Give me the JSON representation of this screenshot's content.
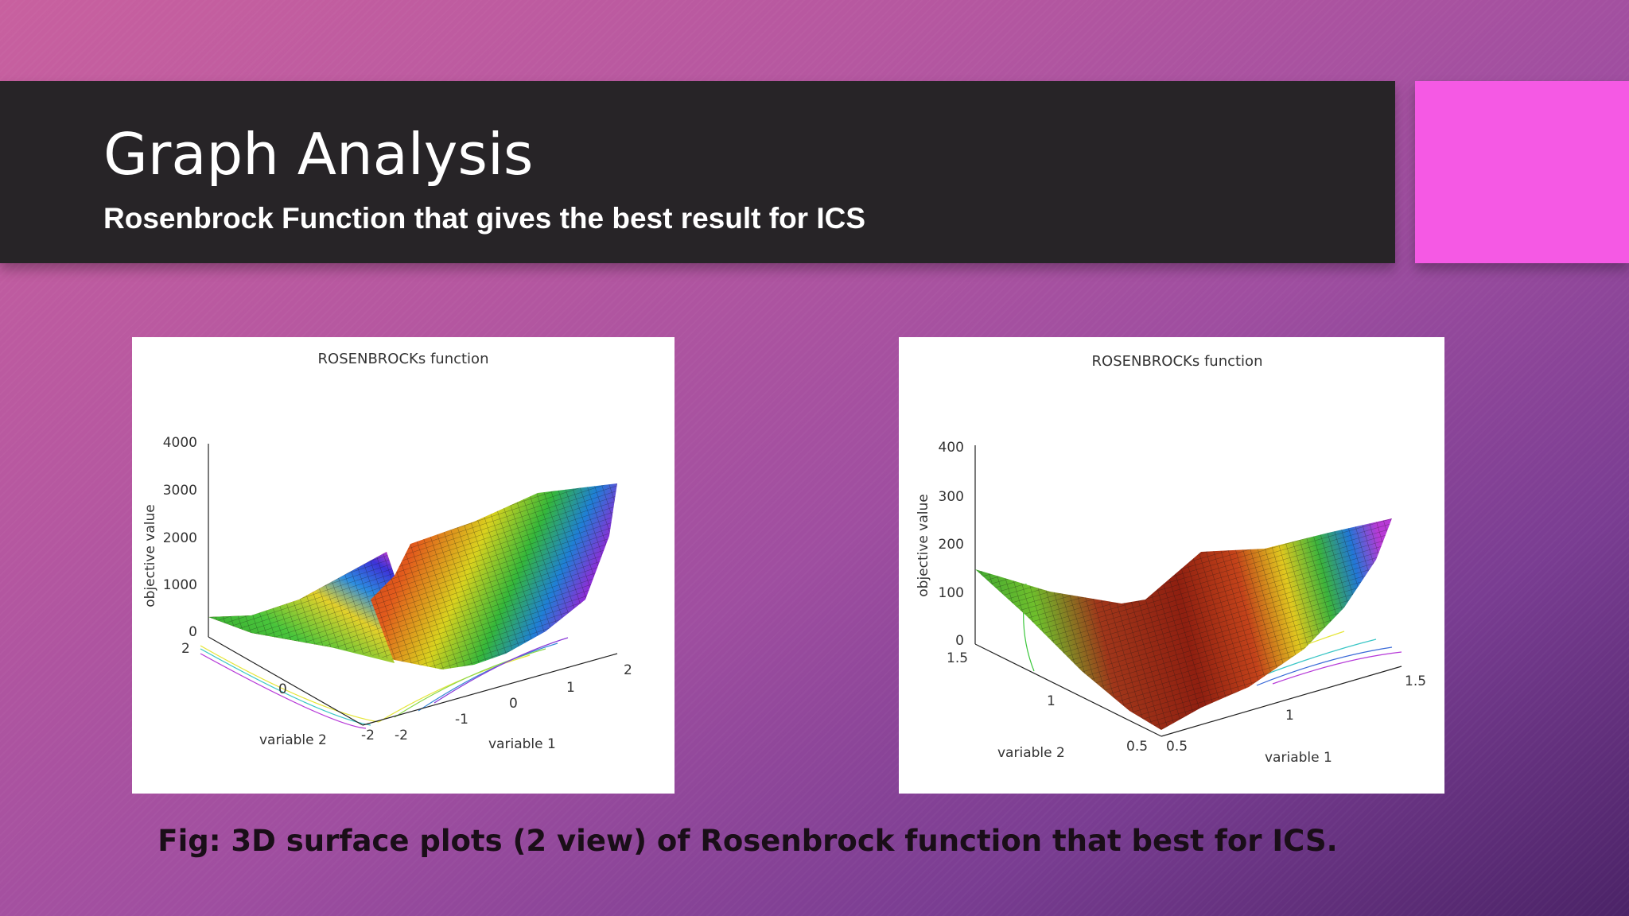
{
  "slide": {
    "title": "Graph Analysis",
    "subtitle": "Rosenbrock Function that gives the best result for ICS",
    "caption": "Fig: 3D surface plots (2 view) of Rosenbrock function that best for ICS.",
    "accent_color": "#f559e4",
    "title_bar_color": "#272427"
  },
  "plots": [
    {
      "title": "ROSENBROCKs function",
      "zlabel": "objective value",
      "xlabel": "variable 1",
      "ylabel": "variable 2",
      "z_ticks": [
        "4000",
        "3000",
        "2000",
        "1000",
        "0"
      ],
      "v2_ticks": [
        "2",
        "0",
        "-2"
      ],
      "v1_ticks": [
        "-2",
        "-1",
        "0",
        "1",
        "2"
      ]
    },
    {
      "title": "ROSENBROCKs function",
      "zlabel": "objective value",
      "xlabel": "variable 1",
      "ylabel": "variable 2",
      "z_ticks": [
        "400",
        "300",
        "200",
        "100",
        "0"
      ],
      "v2_ticks": [
        "1.5",
        "1",
        "0.5"
      ],
      "v1_ticks": [
        "0.5",
        "1",
        "1.5"
      ]
    }
  ]
}
